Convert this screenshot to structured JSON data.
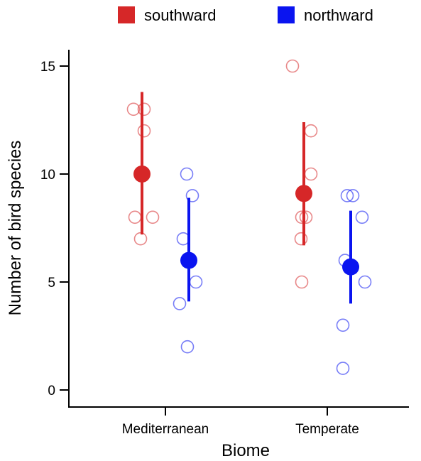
{
  "chart_data": {
    "type": "scatter",
    "xlabel": "Biome",
    "ylabel": "Number of bird species",
    "categories": [
      "Mediterranean",
      "Temperate"
    ],
    "ylim": [
      0,
      15
    ],
    "yticks": [
      "0",
      "5",
      "10",
      "15"
    ],
    "grid": false,
    "legend_position": "top",
    "series": [
      {
        "name": "southward",
        "color": "#d62728",
        "points": [
          {
            "category": "Mediterranean",
            "values": [
              13,
              13,
              12,
              8,
              8,
              7
            ]
          },
          {
            "category": "Temperate",
            "values": [
              15,
              12,
              10,
              8,
              8,
              7,
              5
            ]
          }
        ],
        "summary": [
          {
            "category": "Mediterranean",
            "mean": 10.0,
            "lower": 7.2,
            "upper": 13.8
          },
          {
            "category": "Temperate",
            "mean": 9.1,
            "lower": 6.7,
            "upper": 12.4
          }
        ]
      },
      {
        "name": "northward",
        "color": "#0a14f0",
        "points": [
          {
            "category": "Mediterranean",
            "values": [
              10,
              9,
              7,
              5,
              4,
              2
            ]
          },
          {
            "category": "Temperate",
            "values": [
              9,
              9,
              8,
              6,
              5,
              3,
              1
            ]
          }
        ],
        "summary": [
          {
            "category": "Mediterranean",
            "mean": 6.0,
            "lower": 4.1,
            "upper": 8.9
          },
          {
            "category": "Temperate",
            "mean": 5.7,
            "lower": 4.0,
            "upper": 8.3
          }
        ]
      }
    ]
  }
}
